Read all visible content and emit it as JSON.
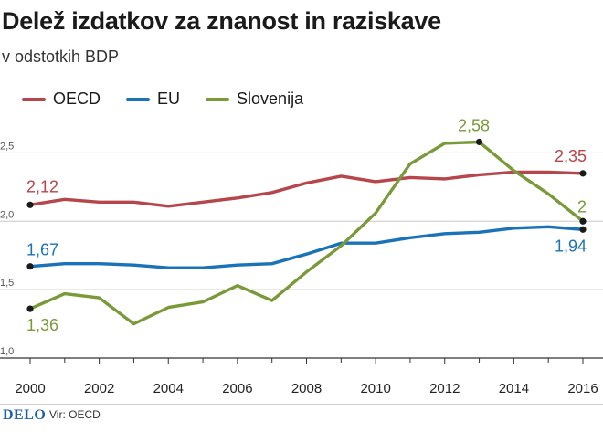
{
  "header": {
    "title": "Delež izdatkov za znanost in raziskave",
    "subtitle": "v odstotkih BDP"
  },
  "footer": {
    "brand": "DELO",
    "source": "Vir: OECD"
  },
  "colors": {
    "oecd": "#b5464b",
    "eu": "#1b73b7",
    "slovenija": "#7a9a3a",
    "grid": "#c8c8c8",
    "axis": "#333333"
  },
  "chart_data": {
    "type": "line",
    "title": "Delež izdatkov za znanost in raziskave",
    "subtitle": "v odstotkih BDP",
    "xlabel": "",
    "ylabel": "",
    "x": [
      2000,
      2001,
      2002,
      2003,
      2004,
      2005,
      2006,
      2007,
      2008,
      2009,
      2010,
      2011,
      2012,
      2013,
      2014,
      2015,
      2016
    ],
    "xticks": [
      "2000",
      "2002",
      "2004",
      "2006",
      "2008",
      "2010",
      "2012",
      "2014",
      "2016"
    ],
    "yticks": [
      "1,0",
      "1,5",
      "2,0",
      "2,5"
    ],
    "ylim": [
      1.0,
      2.75
    ],
    "grid": "horizontal",
    "legend_position": "top-left",
    "series": [
      {
        "name": "OECD",
        "key": "oecd",
        "values": [
          2.12,
          2.16,
          2.14,
          2.14,
          2.11,
          2.14,
          2.17,
          2.21,
          2.28,
          2.33,
          2.29,
          2.32,
          2.31,
          2.34,
          2.36,
          2.36,
          2.35
        ],
        "start_label": "2,12",
        "end_label": "2,35"
      },
      {
        "name": "EU",
        "key": "eu",
        "values": [
          1.67,
          1.69,
          1.69,
          1.68,
          1.66,
          1.66,
          1.68,
          1.69,
          1.76,
          1.84,
          1.84,
          1.88,
          1.91,
          1.92,
          1.95,
          1.96,
          1.94
        ],
        "start_label": "1,67",
        "end_label": "1,94"
      },
      {
        "name": "Slovenija",
        "key": "slovenija",
        "values": [
          1.36,
          1.47,
          1.44,
          1.25,
          1.37,
          1.41,
          1.53,
          1.42,
          1.63,
          1.82,
          2.06,
          2.42,
          2.57,
          2.58,
          2.37,
          2.2,
          2.0
        ],
        "start_label": "1,36",
        "peak_label": "2,58",
        "end_label": "2"
      }
    ]
  }
}
